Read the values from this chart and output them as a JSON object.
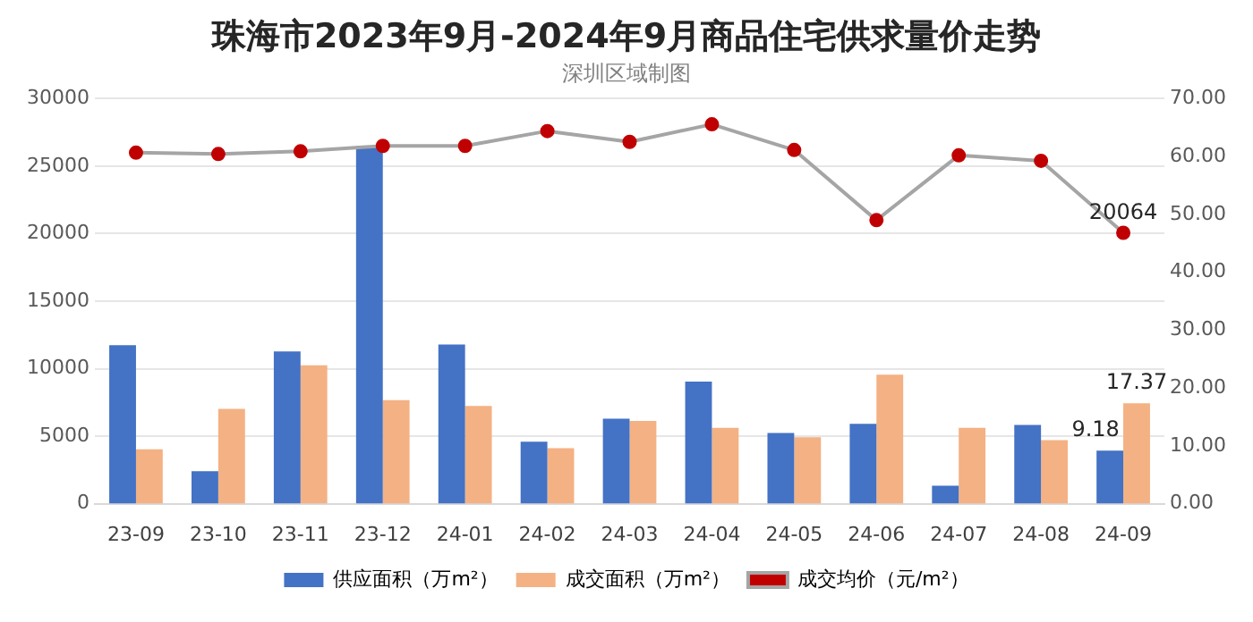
{
  "chart_data": {
    "type": "bar",
    "title": "珠海市2023年9月-2024年9月商品住宅供求量价走势",
    "subtitle": "深圳区域制图",
    "categories": [
      "23-09",
      "23-10",
      "23-11",
      "23-12",
      "24-01",
      "24-02",
      "24-03",
      "24-04",
      "24-05",
      "24-06",
      "24-07",
      "24-08",
      "24-09"
    ],
    "series": [
      {
        "name": "供应面积（万m²）",
        "axis": "y2",
        "color": "#4472c4",
        "values": [
          27.4,
          5.6,
          26.3,
          61.8,
          27.5,
          10.7,
          14.7,
          21.1,
          12.2,
          13.8,
          3.1,
          13.6,
          9.18
        ],
        "value_labels": [
          null,
          null,
          null,
          null,
          null,
          null,
          null,
          null,
          null,
          null,
          null,
          null,
          "9.18"
        ]
      },
      {
        "name": "成交面积（万m²）",
        "axis": "y2",
        "color": "#f4b183",
        "values": [
          9.4,
          16.4,
          23.9,
          17.9,
          16.9,
          9.6,
          14.3,
          13.1,
          11.5,
          22.3,
          13.1,
          11.0,
          17.37
        ],
        "value_labels": [
          null,
          null,
          null,
          null,
          null,
          null,
          null,
          null,
          null,
          null,
          null,
          null,
          "17.37"
        ]
      },
      {
        "name": "成交均价（元/m²）",
        "type": "line",
        "color": "#a5a5a5",
        "marker": "circle",
        "values": [
          26000,
          25900,
          26100,
          26500,
          26500,
          27600,
          26800,
          28100,
          26200,
          21000,
          25800,
          25400,
          20064
        ],
        "value_labels": [
          null,
          null,
          null,
          null,
          null,
          null,
          null,
          null,
          null,
          null,
          null,
          null,
          "20064"
        ]
      }
    ],
    "ylim": [
      0,
      30000
    ],
    "yticks": [
      0,
      5000,
      10000,
      15000,
      20000,
      25000,
      30000
    ],
    "y2lim": [
      0,
      70
    ],
    "y2ticks": [
      {
        "value": 0,
        "label": "0.00"
      },
      {
        "value": 10,
        "label": "10.00"
      },
      {
        "value": 20,
        "label": "20.00"
      },
      {
        "value": 30,
        "label": "30.00"
      },
      {
        "value": 40,
        "label": "40.00"
      },
      {
        "value": 50,
        "label": "50.00"
      },
      {
        "value": 60,
        "label": "60.00"
      },
      {
        "value": 70,
        "label": "70.00"
      }
    ],
    "grid": "y",
    "legend": "bottom"
  }
}
